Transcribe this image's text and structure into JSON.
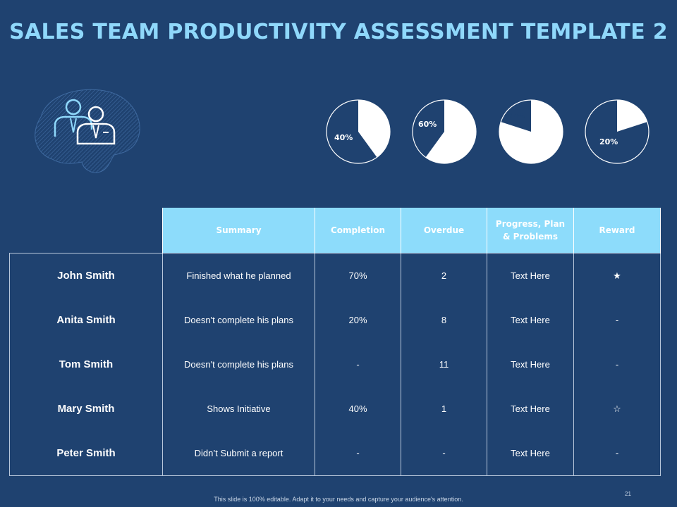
{
  "slide": {
    "title": "SALES TEAM PRODUCTIVITY ASSESSMENT TEMPLATE 2",
    "footer": "This slide is 100% editable. Adapt it to your needs and capture your audience's attention.",
    "page_number": "21",
    "logo_icon": "team-members-icon"
  },
  "colors": {
    "background": "#1f4270",
    "title": "#8fd8fb",
    "header": "#8ddcfb",
    "pie_fill": "#ffffff",
    "pie_bg": "#1f4270"
  },
  "pies": [
    {
      "value": 40,
      "label": "40%"
    },
    {
      "value": 60,
      "label": "60%"
    },
    {
      "value": 80,
      "label": "80%"
    },
    {
      "value": 20,
      "label": "20%"
    }
  ],
  "table": {
    "headers": [
      "Summary",
      "Completion",
      "Overdue",
      "Progress, Plan & Problems",
      "Reward"
    ],
    "rows": [
      {
        "name": "John Smith",
        "summary": "Finished what he planned",
        "completion": "70%",
        "overdue": "2",
        "progress": "Text Here",
        "reward": "★"
      },
      {
        "name": "Anita Smith",
        "summary": "Doesn't complete his plans",
        "completion": "20%",
        "overdue": "8",
        "progress": "Text Here",
        "reward": "-"
      },
      {
        "name": "Tom Smith",
        "summary": "Doesn't complete his plans",
        "completion": "-",
        "overdue": "11",
        "progress": "Text Here",
        "reward": "-"
      },
      {
        "name": "Mary Smith",
        "summary": "Shows Initiative",
        "completion": "40%",
        "overdue": "1",
        "progress": "Text Here",
        "reward": "☆"
      },
      {
        "name": "Peter Smith",
        "summary": "Didn’t Submit  a report",
        "completion": "-",
        "overdue": "-",
        "progress": "Text Here",
        "reward": "-"
      }
    ]
  }
}
